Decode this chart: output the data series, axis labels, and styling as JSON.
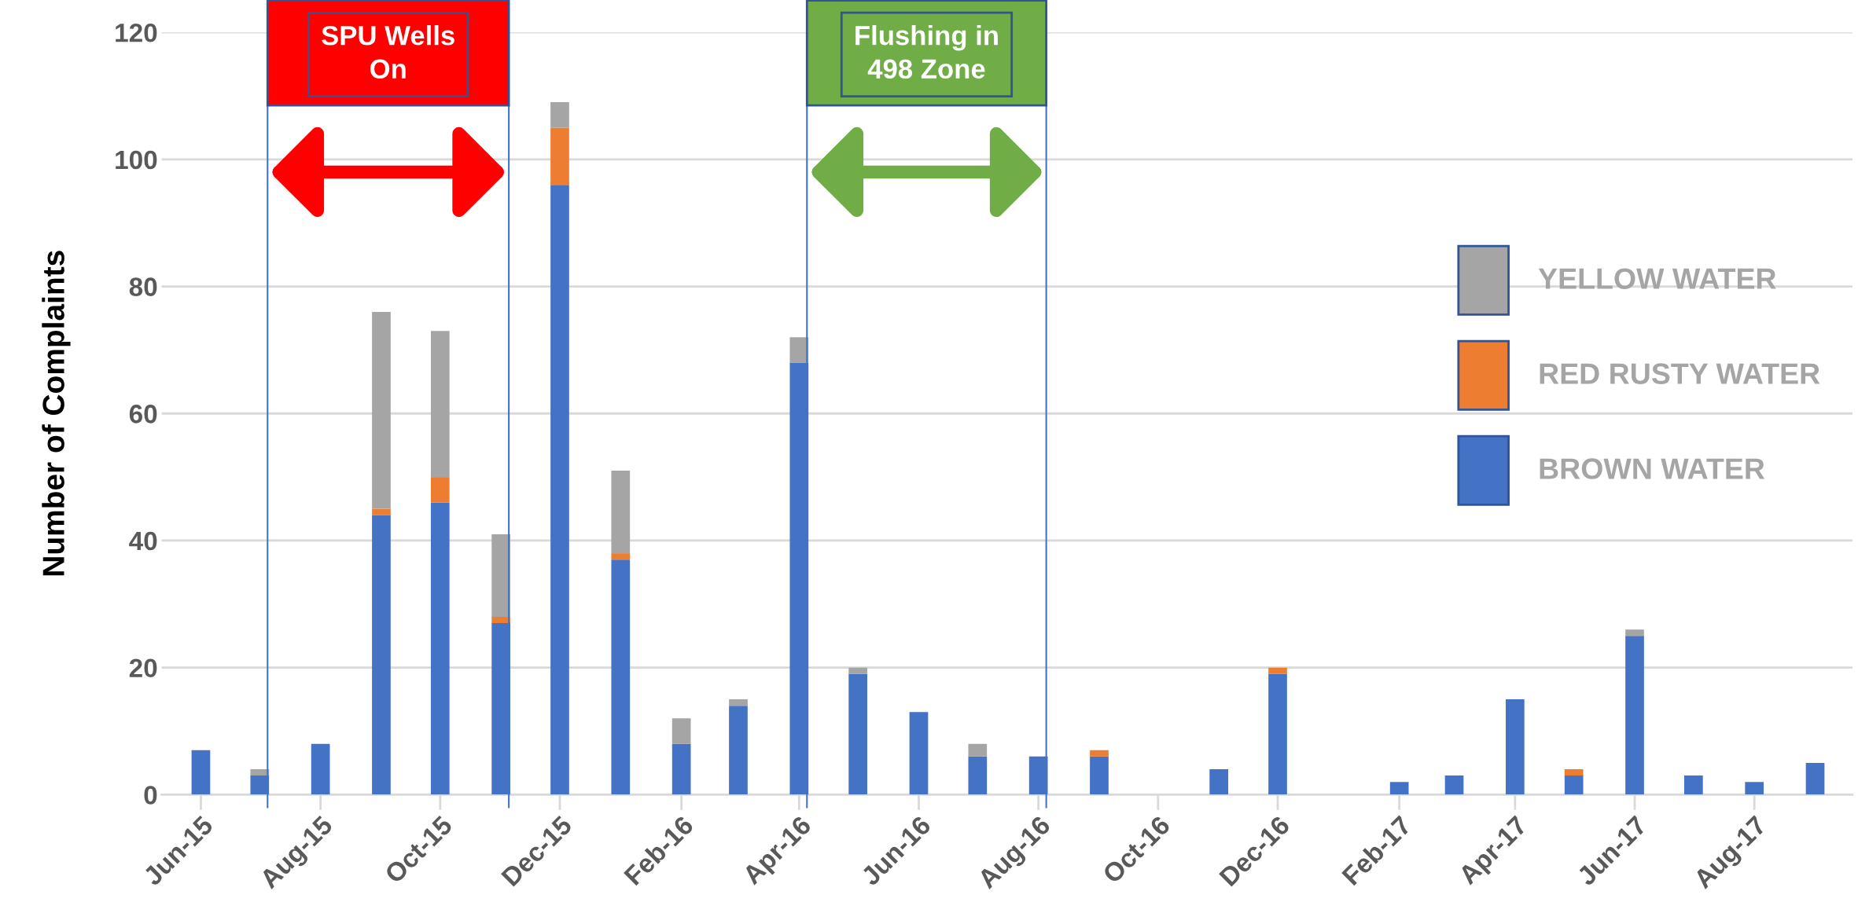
{
  "chart_data": {
    "type": "bar",
    "stacked": true,
    "ylabel": "Number of Complaints",
    "x": [
      "2015-06-01",
      "2015-07-01",
      "2015-08-01",
      "2015-09-01",
      "2015-10-01",
      "2015-11-01",
      "2015-12-01",
      "2016-01-01",
      "2016-02-01",
      "2016-03-01",
      "2016-04-01",
      "2016-05-01",
      "2016-06-01",
      "2016-07-01",
      "2016-08-01",
      "2016-09-01",
      "2016-10-01",
      "2016-11-01",
      "2016-12-01",
      "2017-01-01",
      "2017-02-01",
      "2017-03-01",
      "2017-04-01",
      "2017-05-01",
      "2017-06-01",
      "2017-07-01",
      "2017-08-01",
      "2017-09-01"
    ],
    "series": [
      {
        "name": "BROWN WATER",
        "color": "#4472c4",
        "values": [
          7,
          3,
          8,
          44,
          46,
          27,
          96,
          37,
          8,
          14,
          68,
          19,
          13,
          6,
          6,
          6,
          0,
          4,
          19,
          0,
          2,
          3,
          15,
          3,
          25,
          3,
          2,
          5
        ]
      },
      {
        "name": "RED RUSTY WATER",
        "color": "#ed7d31",
        "values": [
          0,
          0,
          0,
          1,
          4,
          1,
          9,
          1,
          0,
          0,
          0,
          0,
          0,
          0,
          0,
          1,
          0,
          0,
          1,
          0,
          0,
          0,
          0,
          1,
          0,
          0,
          0,
          0
        ]
      },
      {
        "name": "YELLOW WATER",
        "color": "#a5a5a5",
        "values": [
          0,
          1,
          0,
          31,
          23,
          13,
          4,
          13,
          4,
          1,
          4,
          1,
          0,
          2,
          0,
          0,
          0,
          0,
          0,
          0,
          0,
          0,
          0,
          0,
          1,
          0,
          0,
          0
        ]
      }
    ],
    "xlim": [
      "2015-05-12",
      "2017-09-20"
    ],
    "xticks": [
      {
        "value": "2015-06-01",
        "label": "Jun-15"
      },
      {
        "value": "2015-08-01",
        "label": "Aug-15"
      },
      {
        "value": "2015-10-01",
        "label": "Oct-15"
      },
      {
        "value": "2015-12-01",
        "label": "Dec-15"
      },
      {
        "value": "2016-02-01",
        "label": "Feb-16"
      },
      {
        "value": "2016-04-01",
        "label": "Apr-16"
      },
      {
        "value": "2016-06-01",
        "label": "Jun-16"
      },
      {
        "value": "2016-08-01",
        "label": "Aug-16"
      },
      {
        "value": "2016-10-01",
        "label": "Oct-16"
      },
      {
        "value": "2016-12-01",
        "label": "Dec-16"
      },
      {
        "value": "2017-02-01",
        "label": "Feb-17"
      },
      {
        "value": "2017-04-01",
        "label": "Apr-17"
      },
      {
        "value": "2017-06-01",
        "label": "Jun-17"
      },
      {
        "value": "2017-08-01",
        "label": "Aug-17"
      }
    ],
    "ylim": [
      0,
      120
    ],
    "yticks": [
      0,
      20,
      40,
      60,
      80,
      100,
      120
    ],
    "grid": "y",
    "legend": "right",
    "ref_lines": [
      {
        "axis": "x",
        "value": "2015-07-05",
        "color": "#4472c4"
      },
      {
        "axis": "x",
        "value": "2015-11-05",
        "color": "#4472c4"
      },
      {
        "axis": "x",
        "value": "2016-04-05",
        "color": "#4472c4"
      },
      {
        "axis": "x",
        "value": "2016-08-05",
        "color": "#4472c4"
      }
    ],
    "bands": [
      {
        "axis": "x",
        "from": "2015-07-05",
        "to": "2015-11-05",
        "label": "SPU Wells\nOn",
        "color": "#ff0000"
      },
      {
        "axis": "x",
        "from": "2016-04-05",
        "to": "2016-08-05",
        "label": "Flushing in\n498 Zone",
        "color": "#70ad47"
      }
    ]
  }
}
